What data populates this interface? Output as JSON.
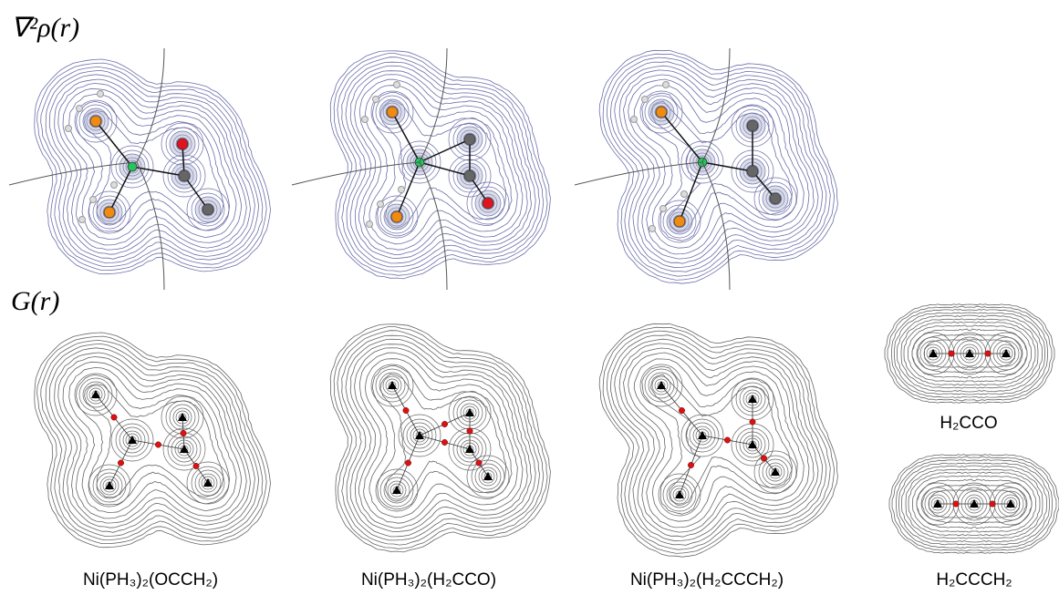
{
  "headings": {
    "laplacian": "∇²ρ(r)",
    "kinetic": "G(r)"
  },
  "labels": [
    "Ni(PH₃)₂(OCCH₂)",
    "Ni(PH₃)₂(H₂CCO)",
    "Ni(PH₃)₂(H₂CCCH₂)",
    "H₂CCO",
    "H₂CCCH₂"
  ]
}
